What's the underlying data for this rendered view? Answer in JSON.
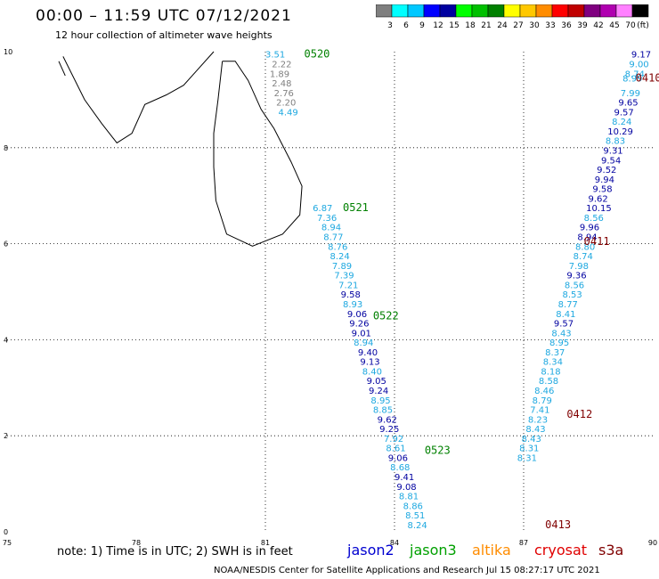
{
  "header": {
    "title": "00:00 – 11:59 UTC 07/12/2021",
    "subtitle": "12 hour collection of altimeter wave heights"
  },
  "colorbar": {
    "labels": [
      "3",
      "6",
      "9",
      "12",
      "15",
      "18",
      "21",
      "24",
      "27",
      "30",
      "33",
      "36",
      "39",
      "42",
      "45",
      "70"
    ],
    "unit": "(ft)",
    "colors": [
      "#7f7f7f",
      "#00ffff",
      "#00c8ff",
      "#0000ff",
      "#0000a0",
      "#00ff00",
      "#00c000",
      "#008000",
      "#ffff00",
      "#ffc800",
      "#ff8c00",
      "#ff0000",
      "#c00000",
      "#800080",
      "#b000b0",
      "#ff80ff",
      "#000000"
    ]
  },
  "axes": {
    "x_ticks": [
      "75",
      "78",
      "81",
      "84",
      "87",
      "90"
    ],
    "y_ticks": [
      "0",
      "2",
      "4",
      "6",
      "8",
      "10"
    ]
  },
  "footer": {
    "note": "note:  1) Time is in UTC;  2) SWH is in feet",
    "credit": "NOAA/NESDIS Center for Satellite Applications and Research    Jul 15 08:27:17 UTC 2021",
    "satellites": [
      {
        "name": "jason2",
        "color": "#0000d0"
      },
      {
        "name": "jason3",
        "color": "#00a000"
      },
      {
        "name": "altika",
        "color": "#ff8c00"
      },
      {
        "name": "cryosat",
        "color": "#e00000"
      },
      {
        "name": "s3a",
        "color": "#800000"
      }
    ]
  },
  "colors": {
    "light_blue": "#1ea8e0",
    "dark_blue": "#0000a0",
    "gray": "#808080",
    "green_label": "#008000",
    "darkred_label": "#800000"
  },
  "passes": [
    {
      "time": "0520",
      "lon": 81.9,
      "lat": 9.95,
      "color": "#008000"
    },
    {
      "time": "0521",
      "lon": 82.8,
      "lat": 6.75,
      "color": "#008000"
    },
    {
      "time": "0522",
      "lon": 83.5,
      "lat": 4.5,
      "color": "#008000"
    },
    {
      "time": "0523",
      "lon": 84.7,
      "lat": 1.7,
      "color": "#008000"
    },
    {
      "time": "0410",
      "lon": 89.6,
      "lat": 9.45,
      "color": "#800000"
    },
    {
      "time": "0411",
      "lon": 88.4,
      "lat": 6.05,
      "color": "#800000"
    },
    {
      "time": "0412",
      "lon": 88.0,
      "lat": 2.45,
      "color": "#800000"
    },
    {
      "time": "0413",
      "lon": 87.5,
      "lat": 0.15,
      "color": "#800000"
    }
  ],
  "tracks": [
    {
      "name": "track-a",
      "points": [
        {
          "v": "3.51",
          "lon": 81.0,
          "lat": 9.95,
          "c": "lb"
        },
        {
          "v": "2.22",
          "lon": 81.15,
          "lat": 9.75,
          "c": "gr"
        },
        {
          "v": "1.89",
          "lon": 81.1,
          "lat": 9.55,
          "c": "gr"
        },
        {
          "v": "2.48",
          "lon": 81.15,
          "lat": 9.35,
          "c": "gr"
        },
        {
          "v": "2.76",
          "lon": 81.2,
          "lat": 9.15,
          "c": "gr"
        },
        {
          "v": "2.20",
          "lon": 81.25,
          "lat": 8.95,
          "c": "gr"
        },
        {
          "v": "4.49",
          "lon": 81.3,
          "lat": 8.75,
          "c": "lb"
        },
        {
          "v": "6.87",
          "lon": 82.1,
          "lat": 6.75,
          "c": "lb"
        },
        {
          "v": "7.36",
          "lon": 82.2,
          "lat": 6.55,
          "c": "lb"
        },
        {
          "v": "8.94",
          "lon": 82.3,
          "lat": 6.35,
          "c": "lb"
        },
        {
          "v": "8.77",
          "lon": 82.35,
          "lat": 6.15,
          "c": "lb"
        },
        {
          "v": "8.76",
          "lon": 82.45,
          "lat": 5.95,
          "c": "lb"
        },
        {
          "v": "8.24",
          "lon": 82.5,
          "lat": 5.75,
          "c": "lb"
        },
        {
          "v": "7.89",
          "lon": 82.55,
          "lat": 5.55,
          "c": "lb"
        },
        {
          "v": "7.39",
          "lon": 82.6,
          "lat": 5.35,
          "c": "lb"
        },
        {
          "v": "7.21",
          "lon": 82.7,
          "lat": 5.15,
          "c": "lb"
        },
        {
          "v": "9.58",
          "lon": 82.75,
          "lat": 4.95,
          "c": "db"
        },
        {
          "v": "8.93",
          "lon": 82.8,
          "lat": 4.75,
          "c": "lb"
        },
        {
          "v": "9.06",
          "lon": 82.9,
          "lat": 4.55,
          "c": "db"
        },
        {
          "v": "9.26",
          "lon": 82.95,
          "lat": 4.35,
          "c": "db"
        },
        {
          "v": "9.01",
          "lon": 83.0,
          "lat": 4.15,
          "c": "db"
        },
        {
          "v": "8.94",
          "lon": 83.05,
          "lat": 3.95,
          "c": "lb"
        },
        {
          "v": "9.40",
          "lon": 83.15,
          "lat": 3.75,
          "c": "db"
        },
        {
          "v": "9.13",
          "lon": 83.2,
          "lat": 3.55,
          "c": "db"
        },
        {
          "v": "8.40",
          "lon": 83.25,
          "lat": 3.35,
          "c": "lb"
        },
        {
          "v": "9.05",
          "lon": 83.35,
          "lat": 3.15,
          "c": "db"
        },
        {
          "v": "9.24",
          "lon": 83.4,
          "lat": 2.95,
          "c": "db"
        },
        {
          "v": "8.95",
          "lon": 83.45,
          "lat": 2.75,
          "c": "lb"
        },
        {
          "v": "8.85",
          "lon": 83.5,
          "lat": 2.55,
          "c": "lb"
        },
        {
          "v": "9.62",
          "lon": 83.6,
          "lat": 2.35,
          "c": "db"
        },
        {
          "v": "9.25",
          "lon": 83.65,
          "lat": 2.15,
          "c": "db"
        },
        {
          "v": "7.92",
          "lon": 83.75,
          "lat": 1.95,
          "c": "lb"
        },
        {
          "v": "8.61",
          "lon": 83.8,
          "lat": 1.75,
          "c": "lb"
        },
        {
          "v": "9.06",
          "lon": 83.85,
          "lat": 1.55,
          "c": "db"
        },
        {
          "v": "8.68",
          "lon": 83.9,
          "lat": 1.35,
          "c": "lb"
        },
        {
          "v": "9.41",
          "lon": 84.0,
          "lat": 1.15,
          "c": "db"
        },
        {
          "v": "9.08",
          "lon": 84.05,
          "lat": 0.95,
          "c": "db"
        },
        {
          "v": "8.81",
          "lon": 84.1,
          "lat": 0.75,
          "c": "lb"
        },
        {
          "v": "8.86",
          "lon": 84.2,
          "lat": 0.55,
          "c": "lb"
        },
        {
          "v": "8.51",
          "lon": 84.25,
          "lat": 0.35,
          "c": "lb"
        },
        {
          "v": "8.24",
          "lon": 84.3,
          "lat": 0.15,
          "c": "lb"
        }
      ]
    },
    {
      "name": "track-b",
      "points": [
        {
          "v": "9.17",
          "lon": 89.5,
          "lat": 9.95,
          "c": "db"
        },
        {
          "v": "9.00",
          "lon": 89.45,
          "lat": 9.75,
          "c": "lb"
        },
        {
          "v": "8.74",
          "lon": 89.35,
          "lat": 9.55,
          "c": "lb"
        },
        {
          "v": "8.99",
          "lon": 89.3,
          "lat": 9.45,
          "c": "lb"
        },
        {
          "v": "7.99",
          "lon": 89.25,
          "lat": 9.15,
          "c": "lb"
        },
        {
          "v": "9.65",
          "lon": 89.2,
          "lat": 8.95,
          "c": "db"
        },
        {
          "v": "9.57",
          "lon": 89.1,
          "lat": 8.75,
          "c": "db"
        },
        {
          "v": "8.24",
          "lon": 89.05,
          "lat": 8.55,
          "c": "lb"
        },
        {
          "v": "10.29",
          "lon": 88.95,
          "lat": 8.35,
          "c": "db"
        },
        {
          "v": "8.83",
          "lon": 88.9,
          "lat": 8.15,
          "c": "lb"
        },
        {
          "v": "9.31",
          "lon": 88.85,
          "lat": 7.95,
          "c": "db"
        },
        {
          "v": "9.54",
          "lon": 88.8,
          "lat": 7.75,
          "c": "db"
        },
        {
          "v": "9.52",
          "lon": 88.7,
          "lat": 7.55,
          "c": "db"
        },
        {
          "v": "9.94",
          "lon": 88.65,
          "lat": 7.35,
          "c": "db"
        },
        {
          "v": "9.58",
          "lon": 88.6,
          "lat": 7.15,
          "c": "db"
        },
        {
          "v": "9.62",
          "lon": 88.5,
          "lat": 6.95,
          "c": "db"
        },
        {
          "v": "10.15",
          "lon": 88.45,
          "lat": 6.75,
          "c": "db"
        },
        {
          "v": "8.56",
          "lon": 88.4,
          "lat": 6.55,
          "c": "lb"
        },
        {
          "v": "9.96",
          "lon": 88.3,
          "lat": 6.35,
          "c": "db"
        },
        {
          "v": "8.94",
          "lon": 88.25,
          "lat": 6.15,
          "c": "db"
        },
        {
          "v": "8.80",
          "lon": 88.2,
          "lat": 5.95,
          "c": "lb"
        },
        {
          "v": "8.74",
          "lon": 88.15,
          "lat": 5.75,
          "c": "lb"
        },
        {
          "v": "7.98",
          "lon": 88.05,
          "lat": 5.55,
          "c": "lb"
        },
        {
          "v": "9.36",
          "lon": 88.0,
          "lat": 5.35,
          "c": "db"
        },
        {
          "v": "8.56",
          "lon": 87.95,
          "lat": 5.15,
          "c": "lb"
        },
        {
          "v": "8.53",
          "lon": 87.9,
          "lat": 4.95,
          "c": "lb"
        },
        {
          "v": "8.77",
          "lon": 87.8,
          "lat": 4.75,
          "c": "lb"
        },
        {
          "v": "8.41",
          "lon": 87.75,
          "lat": 4.55,
          "c": "lb"
        },
        {
          "v": "9.57",
          "lon": 87.7,
          "lat": 4.35,
          "c": "db"
        },
        {
          "v": "8.43",
          "lon": 87.65,
          "lat": 4.15,
          "c": "lb"
        },
        {
          "v": "8.95",
          "lon": 87.6,
          "lat": 3.95,
          "c": "lb"
        },
        {
          "v": "8.37",
          "lon": 87.5,
          "lat": 3.75,
          "c": "lb"
        },
        {
          "v": "8.34",
          "lon": 87.45,
          "lat": 3.55,
          "c": "lb"
        },
        {
          "v": "8.18",
          "lon": 87.4,
          "lat": 3.35,
          "c": "lb"
        },
        {
          "v": "8.58",
          "lon": 87.35,
          "lat": 3.15,
          "c": "lb"
        },
        {
          "v": "8.46",
          "lon": 87.25,
          "lat": 2.95,
          "c": "lb"
        },
        {
          "v": "8.79",
          "lon": 87.2,
          "lat": 2.75,
          "c": "lb"
        },
        {
          "v": "7.41",
          "lon": 87.15,
          "lat": 2.55,
          "c": "lb"
        },
        {
          "v": "8.23",
          "lon": 87.1,
          "lat": 2.35,
          "c": "lb"
        },
        {
          "v": "8.43",
          "lon": 87.05,
          "lat": 2.15,
          "c": "lb"
        },
        {
          "v": "8.43",
          "lon": 86.95,
          "lat": 1.95,
          "c": "lb"
        },
        {
          "v": "8.31",
          "lon": 86.9,
          "lat": 1.75,
          "c": "lb"
        },
        {
          "v": "8.31",
          "lon": 86.85,
          "lat": 1.55,
          "c": "lb"
        }
      ]
    }
  ]
}
